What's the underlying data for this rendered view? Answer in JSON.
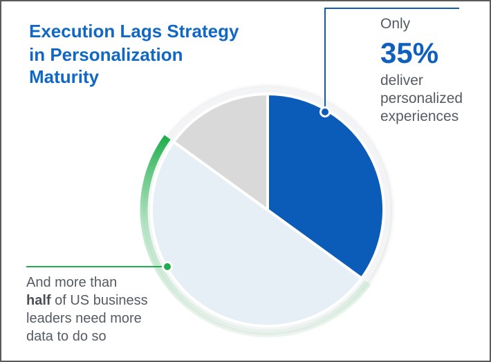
{
  "title": {
    "line1": "Execution Lags Strategy",
    "line2": "in Personalization",
    "line3": "Maturity"
  },
  "callout_right": {
    "prefix": "Only",
    "value": "35%",
    "line1": "deliver",
    "line2": "personalized",
    "line3": "experiences"
  },
  "callout_left": {
    "line1": "And more than",
    "bold": "half",
    "line2_rest": " of US business",
    "line3": "leaders need more",
    "line4": "data to do so"
  },
  "chart_data": {
    "type": "pie",
    "categories": [
      "",
      "",
      ""
    ],
    "values": [
      35,
      50,
      15
    ],
    "colors": [
      "#0a5cb8",
      "#e6eef6",
      "#d9d9d9"
    ],
    "highlight_ring_color": "#1fae4b",
    "title": "",
    "xlabel": "",
    "ylabel": ""
  }
}
